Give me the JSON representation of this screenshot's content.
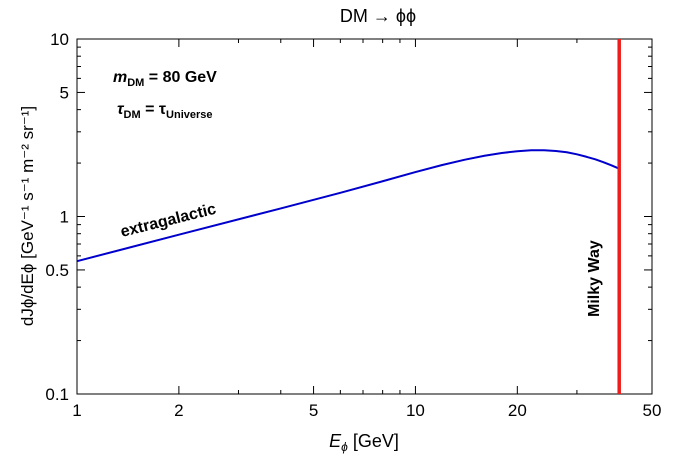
{
  "chart_data": {
    "type": "line",
    "title": "DM → ϕϕ",
    "xlabel": {
      "main": "E",
      "sub": "ϕ",
      "unit": " [GeV]"
    },
    "ylabel": "dJϕ/dEϕ [GeV⁻¹ s⁻¹ m⁻² sr⁻¹]",
    "x_scale": "log",
    "y_scale": "log",
    "xlim": [
      1,
      50
    ],
    "ylim": [
      0.1,
      10
    ],
    "x_ticks": [
      1,
      2,
      5,
      10,
      20,
      50
    ],
    "x_tick_labels": [
      "1",
      "2",
      "5",
      "10",
      "20",
      "50"
    ],
    "y_ticks": [
      0.1,
      0.5,
      1,
      5,
      10
    ],
    "y_tick_labels": [
      "0.1",
      "0.5",
      "1",
      "5",
      "10"
    ],
    "annotations": [
      {
        "main": "m",
        "sub": "DM",
        "rest": " = 80 GeV"
      },
      {
        "main": "τ",
        "sub": "DM",
        "mid": " = τ",
        "sub2": "Universe"
      }
    ],
    "series": [
      {
        "name": "extragalactic",
        "color": "#0000cc",
        "x": [
          1,
          2,
          4,
          6,
          8,
          10,
          12,
          14,
          16,
          18,
          20,
          22,
          24,
          26,
          28,
          30,
          32,
          34,
          36,
          38,
          40
        ],
        "y": [
          0.56,
          0.79,
          1.11,
          1.36,
          1.58,
          1.78,
          1.95,
          2.09,
          2.2,
          2.28,
          2.33,
          2.36,
          2.36,
          2.34,
          2.3,
          2.24,
          2.17,
          2.1,
          2.02,
          1.94,
          1.86
        ]
      },
      {
        "name": "Milky Way",
        "color": "#ee1c1c",
        "type": "vertical-line",
        "x": 40
      }
    ]
  }
}
